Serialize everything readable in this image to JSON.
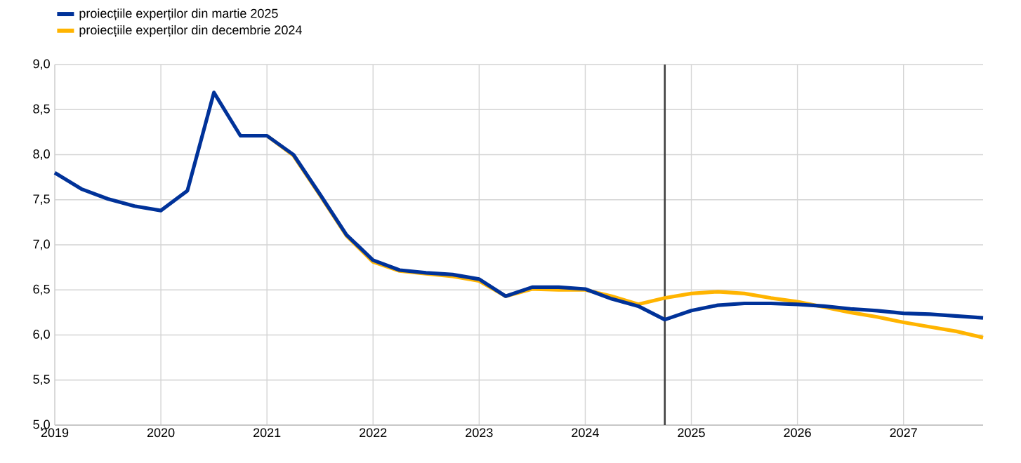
{
  "chart_data": {
    "type": "line",
    "x": [
      2019,
      2019.25,
      2019.5,
      2019.75,
      2020,
      2020.25,
      2020.5,
      2020.75,
      2021,
      2021.25,
      2021.5,
      2021.75,
      2022,
      2022.25,
      2022.5,
      2022.75,
      2023,
      2023.25,
      2023.5,
      2023.75,
      2024,
      2024.25,
      2024.5,
      2024.75,
      2025,
      2025.25,
      2025.5,
      2025.75,
      2026,
      2026.25,
      2026.5,
      2026.75,
      2027,
      2027.25,
      2027.5,
      2027.75
    ],
    "series": [
      {
        "name": "proiecțiile experților din martie 2025",
        "color": "#003299",
        "values": [
          7.8,
          7.62,
          7.51,
          7.43,
          7.38,
          7.6,
          8.69,
          8.21,
          8.21,
          8.0,
          7.56,
          7.11,
          6.83,
          6.72,
          6.69,
          6.67,
          6.62,
          6.43,
          6.53,
          6.53,
          6.51,
          6.4,
          6.32,
          6.17,
          6.27,
          6.33,
          6.35,
          6.35,
          6.34,
          6.32,
          6.29,
          6.27,
          6.24,
          6.23,
          6.21,
          6.19
        ]
      },
      {
        "name": "proiecțiile experților din decembrie 2024",
        "color": "#ffb400",
        "values": [
          null,
          null,
          null,
          null,
          null,
          null,
          null,
          null,
          8.21,
          7.99,
          7.55,
          7.1,
          6.81,
          6.71,
          6.68,
          6.65,
          6.6,
          6.43,
          6.51,
          6.5,
          6.5,
          6.43,
          6.34,
          6.41,
          6.46,
          6.48,
          6.46,
          6.41,
          6.37,
          6.31,
          6.25,
          6.2,
          6.14,
          6.09,
          6.04,
          5.97
        ]
      }
    ],
    "xlim": [
      2019,
      2027.75
    ],
    "xticks": [
      2019,
      2020,
      2021,
      2022,
      2023,
      2024,
      2025,
      2026,
      2027
    ],
    "ylim": [
      5,
      9
    ],
    "yticks": [
      {
        "value": 5,
        "label": "5,0"
      },
      {
        "value": 5.5,
        "label": "5,5"
      },
      {
        "value": 6,
        "label": "6,0"
      },
      {
        "value": 6.5,
        "label": "6,5"
      },
      {
        "value": 7,
        "label": "7,0"
      },
      {
        "value": 7.5,
        "label": "7,5"
      },
      {
        "value": 8,
        "label": "8,0"
      },
      {
        "value": 8.5,
        "label": "8,5"
      },
      {
        "value": 9,
        "label": "9,0"
      }
    ],
    "ref_lines": [
      {
        "axis": "x",
        "value": 2024.75,
        "color": "#404040"
      }
    ],
    "grid": true,
    "legend": "top left"
  }
}
